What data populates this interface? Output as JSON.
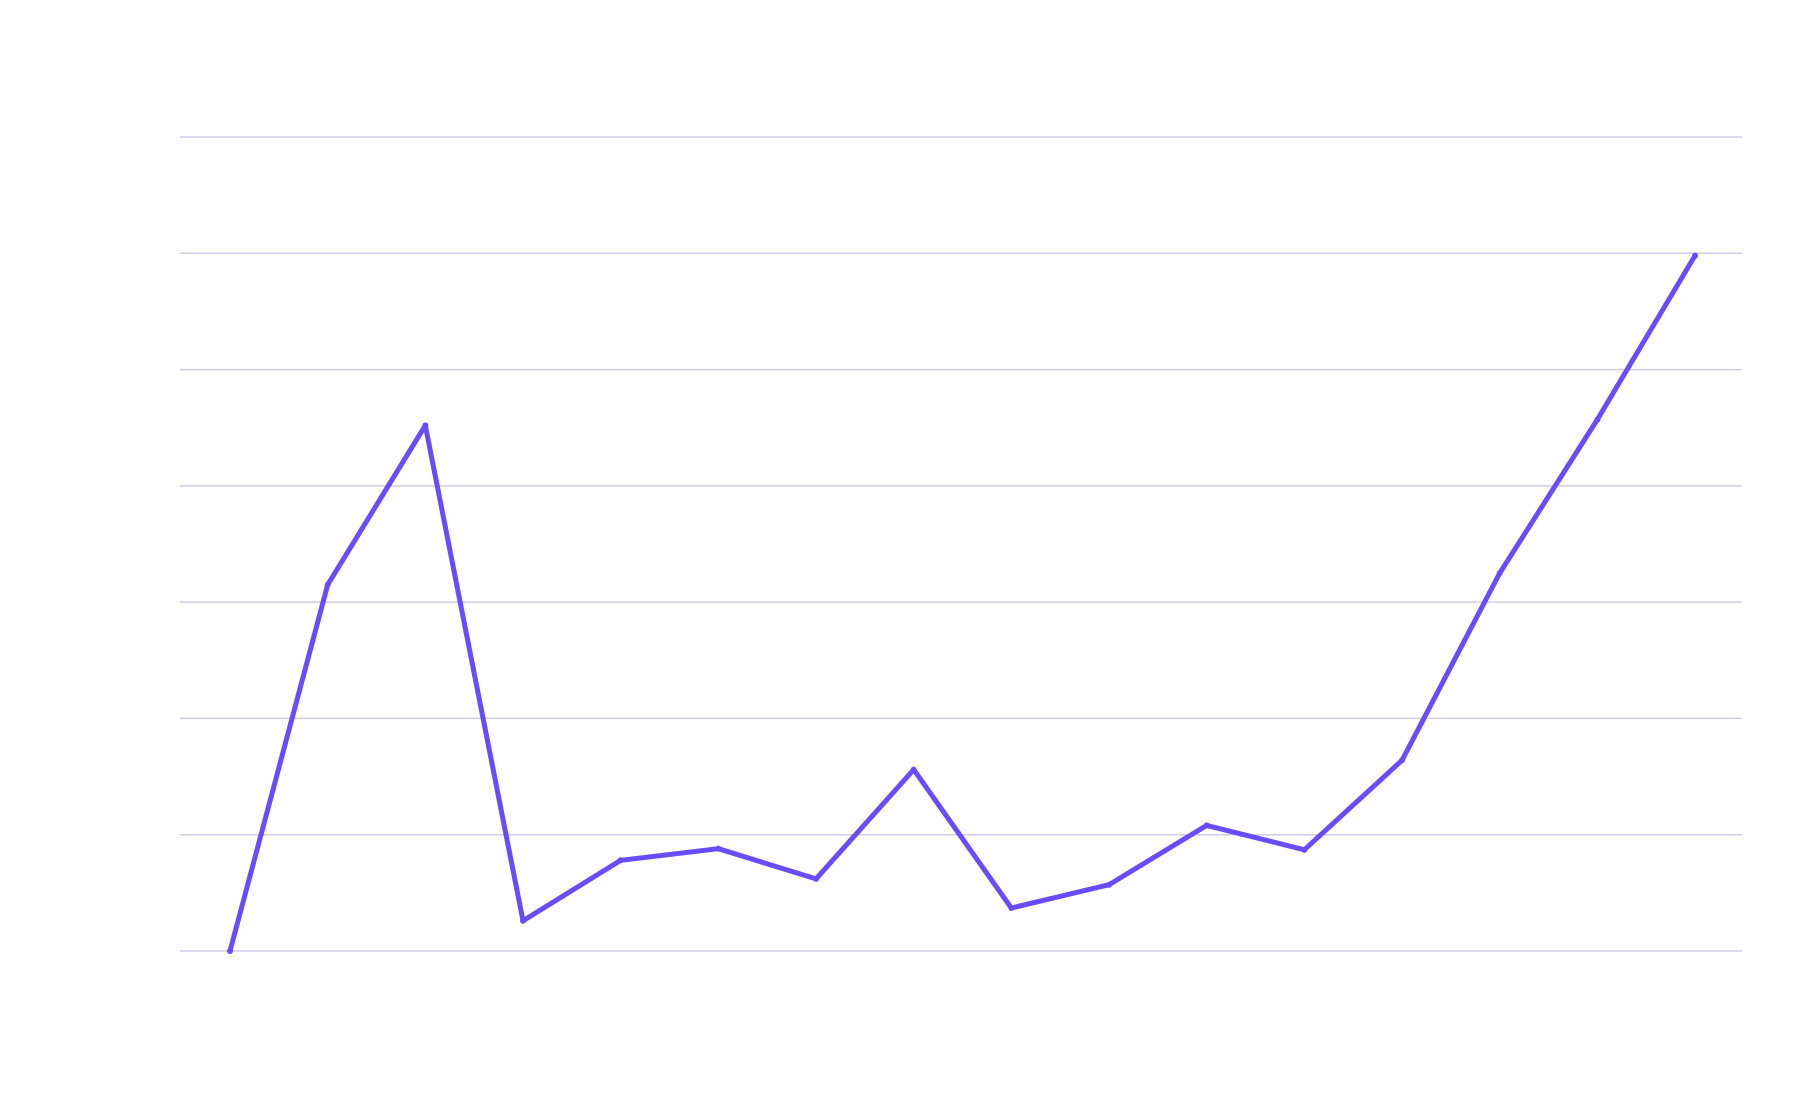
{
  "chart_data": {
    "type": "line",
    "title": "",
    "xlabel": "",
    "ylabel": "",
    "grid": true,
    "legend": "none",
    "ylim": [
      0,
      7
    ],
    "x": [
      1,
      2,
      3,
      4,
      5,
      6,
      7,
      8,
      9,
      10,
      11,
      12,
      13,
      14,
      15,
      16
    ],
    "series": [
      {
        "color": "#6a4cff",
        "values": [
          0.0,
          3.15,
          4.52,
          0.26,
          0.78,
          0.88,
          0.62,
          1.56,
          0.37,
          0.57,
          1.08,
          0.87,
          1.64,
          3.25,
          4.57,
          5.98
        ]
      }
    ],
    "colors": {
      "gridline": "#cfcde6",
      "background": "#ffffff"
    }
  }
}
